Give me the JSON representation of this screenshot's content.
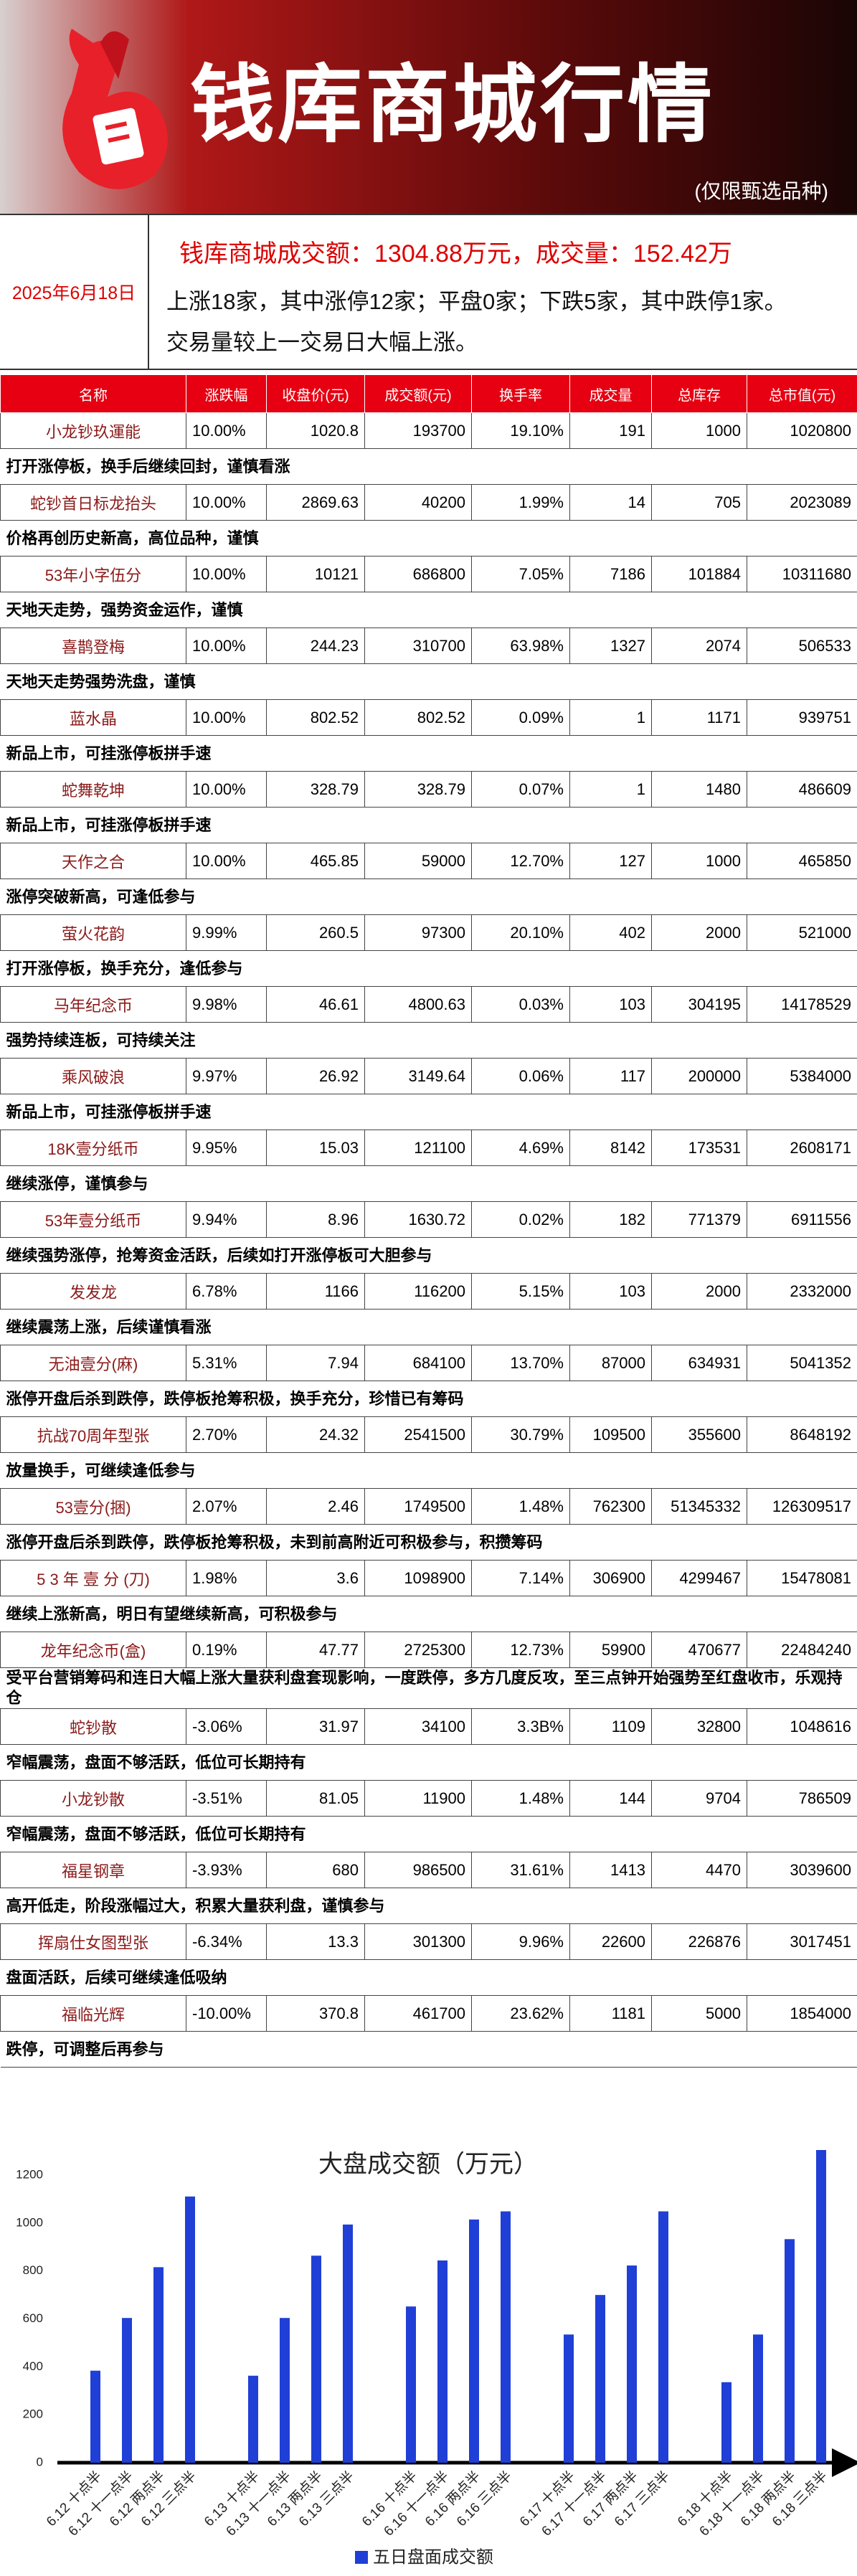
{
  "header": {
    "title": "钱库商城行情",
    "subtitle": "(仅限甄选品种)"
  },
  "summary": {
    "date": "2025年6月18日",
    "headline": "钱库商城成交额：1304.88万元，成交量：152.42万",
    "lines": [
      "上涨18家，其中涨停12家；平盘0家；下跌5家，其中跌停1家。",
      "交易量较上一交易日大幅上涨。"
    ]
  },
  "table": {
    "headers": [
      "名称",
      "涨跌幅",
      "收盘价(元)",
      "成交额(元)",
      "换手率",
      "成交量",
      "总库存",
      "总市值(元)"
    ],
    "rows": [
      {
        "cells": [
          "小龙钞玖運能",
          "10.00%",
          "1020.8",
          "193700",
          "19.10%",
          "191",
          "1000",
          "1020800"
        ],
        "note": "打开涨停板，换手后继续回封，谨慎看涨"
      },
      {
        "cells": [
          "蛇钞首日标龙抬头",
          "10.00%",
          "2869.63",
          "40200",
          "1.99%",
          "14",
          "705",
          "2023089"
        ],
        "note": "价格再创历史新高，高位品种，谨慎"
      },
      {
        "cells": [
          "53年小字伍分",
          "10.00%",
          "10121",
          "686800",
          "7.05%",
          "7186",
          "101884",
          "10311680"
        ],
        "note": "天地天走势，强势资金运作，谨慎"
      },
      {
        "cells": [
          "喜鹊登梅",
          "10.00%",
          "244.23",
          "310700",
          "63.98%",
          "1327",
          "2074",
          "506533"
        ],
        "note": "天地天走势强势洗盘，谨慎"
      },
      {
        "cells": [
          "蓝水晶",
          "10.00%",
          "802.52",
          "802.52",
          "0.09%",
          "1",
          "1171",
          "939751"
        ],
        "note": "新品上市，可挂涨停板拼手速"
      },
      {
        "cells": [
          "蛇舞乾坤",
          "10.00%",
          "328.79",
          "328.79",
          "0.07%",
          "1",
          "1480",
          "486609"
        ],
        "note": "新品上市，可挂涨停板拼手速"
      },
      {
        "cells": [
          "天作之合",
          "10.00%",
          "465.85",
          "59000",
          "12.70%",
          "127",
          "1000",
          "465850"
        ],
        "note": "涨停突破新高，可逢低参与"
      },
      {
        "cells": [
          "萤火花韵",
          "9.99%",
          "260.5",
          "97300",
          "20.10%",
          "402",
          "2000",
          "521000"
        ],
        "note": "打开涨停板，换手充分，逢低参与"
      },
      {
        "cells": [
          "马年纪念币",
          "9.98%",
          "46.61",
          "4800.63",
          "0.03%",
          "103",
          "304195",
          "14178529"
        ],
        "note": "强势持续连板，可持续关注"
      },
      {
        "cells": [
          "乘风破浪",
          "9.97%",
          "26.92",
          "3149.64",
          "0.06%",
          "117",
          "200000",
          "5384000"
        ],
        "note": "新品上市，可挂涨停板拼手速"
      },
      {
        "cells": [
          "18K壹分纸币",
          "9.95%",
          "15.03",
          "121100",
          "4.69%",
          "8142",
          "173531",
          "2608171"
        ],
        "note": "继续涨停，谨慎参与"
      },
      {
        "cells": [
          "53年壹分纸币",
          "9.94%",
          "8.96",
          "1630.72",
          "0.02%",
          "182",
          "771379",
          "6911556"
        ],
        "note": "继续强势涨停，抢筹资金活跃，后续如打开涨停板可大胆参与"
      },
      {
        "cells": [
          "发发龙",
          "6.78%",
          "1166",
          "116200",
          "5.15%",
          "103",
          "2000",
          "2332000"
        ],
        "note": "继续震荡上涨，后续谨慎看涨"
      },
      {
        "cells": [
          "无油壹分(麻)",
          "5.31%",
          "7.94",
          "684100",
          "13.70%",
          "87000",
          "634931",
          "5041352"
        ],
        "note": "涨停开盘后杀到跌停，跌停板抢筹积极，换手充分，珍惜已有筹码"
      },
      {
        "cells": [
          "抗战70周年型张",
          "2.70%",
          "24.32",
          "2541500",
          "30.79%",
          "109500",
          "355600",
          "8648192"
        ],
        "note": "放量换手，可继续逢低参与"
      },
      {
        "cells": [
          "53壹分(捆)",
          "2.07%",
          "2.46",
          "1749500",
          "1.48%",
          "762300",
          "51345332",
          "126309517"
        ],
        "note": "涨停开盘后杀到跌停，跌停板抢筹积极，未到前高附近可积极参与，积攒筹码"
      },
      {
        "cells": [
          "5 3 年 壹 分 (刀)",
          "1.98%",
          "3.6",
          "1098900",
          "7.14%",
          "306900",
          "4299467",
          "15478081"
        ],
        "note": "继续上涨新高，明日有望继续新高，可积极参与"
      },
      {
        "cells": [
          "龙年纪念币(盒)",
          "0.19%",
          "47.77",
          "2725300",
          "12.73%",
          "59900",
          "470677",
          "22484240"
        ],
        "note": "受平台营销筹码和连日大幅上涨大量获利盘套现影响，一度跌停，多方几度反攻，至三点钟开始强势至红盘收市，乐观持仓"
      },
      {
        "cells": [
          "蛇钞散",
          "-3.06%",
          "31.97",
          "34100",
          "3.3B%",
          "1109",
          "32800",
          "1048616"
        ],
        "note": "窄幅震荡，盘面不够活跃，低位可长期持有"
      },
      {
        "cells": [
          "小龙钞散",
          "-3.51%",
          "81.05",
          "11900",
          "1.48%",
          "144",
          "9704",
          "786509"
        ],
        "note": "窄幅震荡，盘面不够活跃，低位可长期持有"
      },
      {
        "cells": [
          "福星钢章",
          "-3.93%",
          "680",
          "986500",
          "31.61%",
          "1413",
          "4470",
          "3039600"
        ],
        "note": "高开低走，阶段涨幅过大，积累大量获利盘，谨慎参与"
      },
      {
        "cells": [
          "挥扇仕女图型张",
          "-6.34%",
          "13.3",
          "301300",
          "9.96%",
          "22600",
          "226876",
          "3017451"
        ],
        "note": "盘面活跃，后续可继续逢低吸纳"
      },
      {
        "cells": [
          "福临光辉",
          "-10.00%",
          "370.8",
          "461700",
          "23.62%",
          "1181",
          "5000",
          "1854000"
        ],
        "note": "跌停，可调整后再参与"
      }
    ]
  },
  "chart_data": {
    "type": "bar",
    "title": "大盘成交额（万元）",
    "categories": [
      "6.12 十点半",
      "6.12 十一点半",
      "6.12 两点半",
      "6.12 三点半",
      "6.13 十点半",
      "6.13 十一点半",
      "6.13 两点半",
      "6.13 三点半",
      "6.16 十点半",
      "6.16 十一点半",
      "6.16 两点半",
      "6.16 三点半",
      "6.17 十点半",
      "6.17 十一点半",
      "6.17 两点半",
      "6.17 三点半",
      "6.18 十点半",
      "6.18 十一点半",
      "6.18 两点半",
      "6.18 三点半"
    ],
    "series": [
      {
        "name": "五日盘面成交额",
        "color": "#1f3fd6",
        "values": [
          384,
          604,
          816,
          1111,
          363,
          604,
          864,
          994,
          652,
          844,
          1015,
          1049,
          535,
          700,
          823,
          1049,
          336,
          535,
          933,
          1305
        ]
      }
    ],
    "ylim": [
      0,
      1320
    ],
    "yticks": [
      0,
      200,
      400,
      600,
      800,
      1000,
      1200
    ],
    "grid": false
  }
}
